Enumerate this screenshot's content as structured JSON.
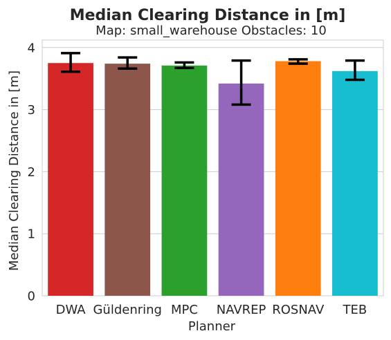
{
  "chart_data": {
    "type": "bar",
    "title": "Median Clearing Distance in [m]",
    "subtitle": "Map: small_warehouse Obstacles: 10",
    "xlabel": "Planner",
    "ylabel": "Median Clearing Distance in [m]",
    "ylim": [
      0,
      4.12
    ],
    "yticks": [
      0,
      1,
      2,
      3,
      4
    ],
    "grid": true,
    "categories": [
      "DWA",
      "Güldenring",
      "MPC",
      "NAVREP",
      "ROSNAV",
      "TEB"
    ],
    "values": [
      3.75,
      3.74,
      3.71,
      3.42,
      3.78,
      3.62
    ],
    "error_low": [
      3.61,
      3.66,
      3.67,
      3.08,
      3.74,
      3.48
    ],
    "error_high": [
      3.91,
      3.84,
      3.76,
      3.79,
      3.81,
      3.79
    ],
    "colors": [
      "#d62728",
      "#8c564b",
      "#2ca02c",
      "#9467bd",
      "#ff7f0e",
      "#17becf"
    ]
  }
}
